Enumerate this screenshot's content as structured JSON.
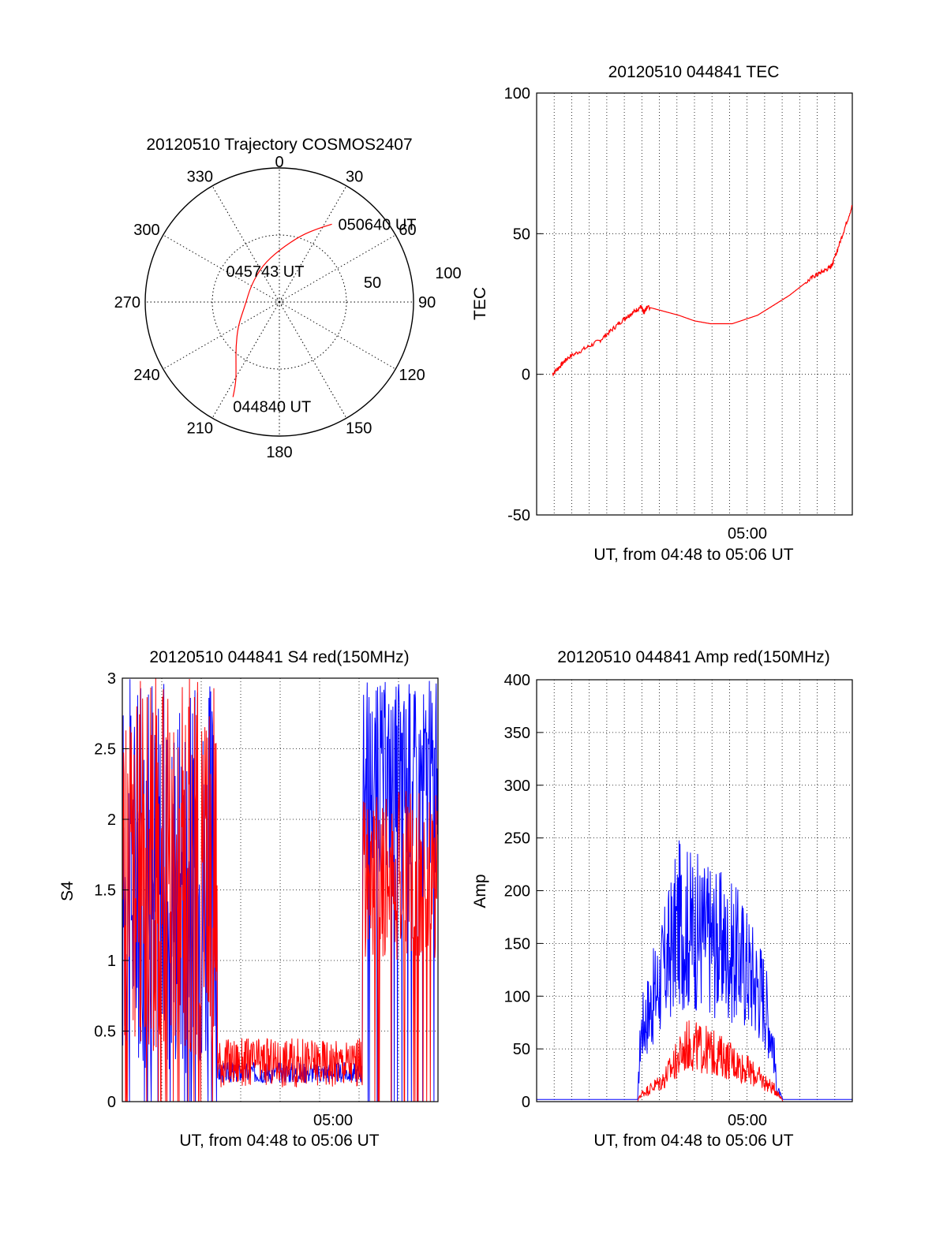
{
  "colors": {
    "red": "#ff0000",
    "blue": "#0000ff",
    "axis": "#000000"
  },
  "chart_data": [
    {
      "type": "polar",
      "title": "20120510 Trajectory COSMOS2407",
      "azimuth_labels": [
        "0",
        "30",
        "60",
        "90",
        "120",
        "150",
        "180",
        "210",
        "240",
        "270",
        "300",
        "330"
      ],
      "radial_labels": [
        "50",
        "100"
      ],
      "zenith_range": [
        0,
        90
      ],
      "series": [
        {
          "color": "red",
          "points": [
            {
              "az": 206,
              "zen": 71
            },
            {
              "az": 208,
              "zen": 62
            },
            {
              "az": 214,
              "zen": 52
            },
            {
              "az": 224,
              "zen": 42
            },
            {
              "az": 240,
              "zen": 32
            },
            {
              "az": 265,
              "zen": 23
            },
            {
              "az": 300,
              "zen": 22
            },
            {
              "az": 335,
              "zen": 27
            },
            {
              "az": 0,
              "zen": 35
            },
            {
              "az": 18,
              "zen": 47
            },
            {
              "az": 28,
              "zen": 56
            },
            {
              "az": 34,
              "zen": 63
            }
          ]
        }
      ],
      "annotations": [
        {
          "text": "044840 UT",
          "az": 206,
          "zen": 71
        },
        {
          "text": "045743 UT",
          "az": 300,
          "zen": 22
        },
        {
          "text": "050640 UT",
          "az": 34,
          "zen": 63
        }
      ]
    },
    {
      "type": "line",
      "title": "20120510 044841 TEC",
      "ylabel": "TEC",
      "xlabel": "UT, from 04:48 to 05:06 UT",
      "ylim": [
        -50,
        100
      ],
      "yticks": [
        "-50",
        "0",
        "50",
        "100"
      ],
      "xticks": [
        "05:00"
      ],
      "grid": true,
      "series": [
        {
          "color": "red",
          "points": [
            [
              0.05,
              0
            ],
            [
              0.1,
              6
            ],
            [
              0.2,
              12
            ],
            [
              0.28,
              20
            ],
            [
              0.33,
              24
            ],
            [
              0.34,
              22
            ],
            [
              0.35,
              24
            ],
            [
              0.45,
              21
            ],
            [
              0.5,
              19
            ],
            [
              0.55,
              18
            ],
            [
              0.62,
              18
            ],
            [
              0.7,
              21
            ],
            [
              0.8,
              28
            ],
            [
              0.88,
              35
            ],
            [
              0.93,
              38
            ],
            [
              0.94,
              40
            ],
            [
              1.0,
              60
            ]
          ]
        }
      ]
    },
    {
      "type": "line",
      "title": "20120510 044841 S4 red(150MHz)",
      "ylabel": "S4",
      "xlabel": "UT, from 04:48 to 05:06 UT",
      "ylim": [
        0,
        3
      ],
      "yticks": [
        "0",
        "0.5",
        "1",
        "1.5",
        "2",
        "2.5",
        "3"
      ],
      "xticks": [
        "05:00"
      ],
      "grid": true,
      "series": [
        {
          "color": "blue",
          "segments": [
            [
              0.0,
              0.3,
              0.2,
              3.0
            ],
            [
              0.3,
              0.76,
              0.13,
              0.28
            ],
            [
              0.76,
              1.0,
              1.6,
              3.0
            ]
          ]
        },
        {
          "color": "red",
          "segments": [
            [
              0.0,
              0.3,
              0.3,
              3.0
            ],
            [
              0.3,
              0.76,
              0.1,
              0.45
            ],
            [
              0.76,
              1.0,
              1.0,
              2.2
            ]
          ]
        }
      ]
    },
    {
      "type": "line",
      "title": "20120510 044841 Amp red(150MHz)",
      "ylabel": "Amp",
      "xlabel": "UT, from 04:48 to 05:06 UT",
      "ylim": [
        0,
        400
      ],
      "yticks": [
        "0",
        "50",
        "100",
        "150",
        "200",
        "250",
        "300",
        "350",
        "400"
      ],
      "xticks": [
        "05:00"
      ],
      "grid": true,
      "series": [
        {
          "color": "blue",
          "envelope": [
            [
              0.0,
              2
            ],
            [
              0.32,
              2
            ],
            [
              0.33,
              100
            ],
            [
              0.4,
              180
            ],
            [
              0.45,
              250
            ],
            [
              0.55,
              230
            ],
            [
              0.65,
              200
            ],
            [
              0.72,
              150
            ],
            [
              0.75,
              80
            ],
            [
              0.76,
              20
            ],
            [
              0.78,
              2
            ],
            [
              1.0,
              2
            ]
          ]
        },
        {
          "color": "red",
          "envelope": [
            [
              0.0,
              0
            ],
            [
              0.32,
              0
            ],
            [
              0.33,
              10
            ],
            [
              0.4,
              30
            ],
            [
              0.48,
              80
            ],
            [
              0.55,
              70
            ],
            [
              0.63,
              55
            ],
            [
              0.7,
              35
            ],
            [
              0.76,
              15
            ],
            [
              0.78,
              0
            ],
            [
              1.0,
              0
            ]
          ]
        }
      ]
    }
  ]
}
